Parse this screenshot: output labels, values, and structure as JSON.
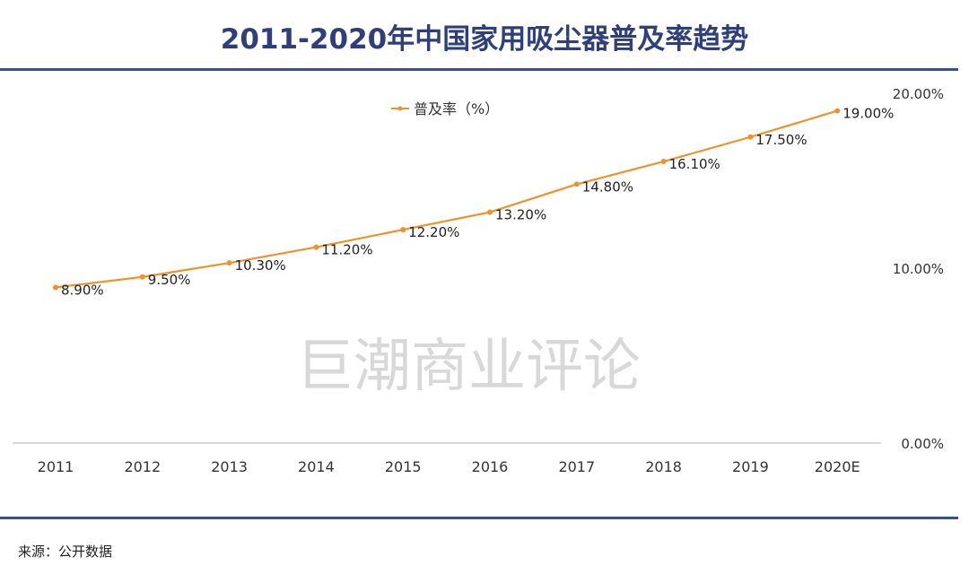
{
  "title": "2011-2020年中国家用吸尘器普及率趋势",
  "source": "来源：公开数据",
  "watermark": "巨潮商业评论",
  "chart_data": {
    "type": "line",
    "title": "2011-2020年中国家用吸尘器普及率趋势",
    "categories": [
      "2011",
      "2012",
      "2013",
      "2014",
      "2015",
      "2016",
      "2017",
      "2018",
      "2019",
      "2020E"
    ],
    "series": [
      {
        "name": "普及率（%）",
        "values": [
          8.9,
          9.5,
          10.3,
          11.2,
          12.2,
          13.2,
          14.8,
          16.1,
          17.5,
          19.0
        ],
        "color": "#f0922b"
      }
    ],
    "data_labels": [
      "8.90%",
      "9.50%",
      "10.30%",
      "11.20%",
      "12.20%",
      "13.20%",
      "14.80%",
      "16.10%",
      "17.50%",
      "19.00%"
    ],
    "y_ticks": [
      "0.00%",
      "10.00%",
      "20.00%"
    ],
    "ylim": [
      0,
      20
    ],
    "y_axis_position": "right",
    "grid": false,
    "legend": "top-center"
  }
}
